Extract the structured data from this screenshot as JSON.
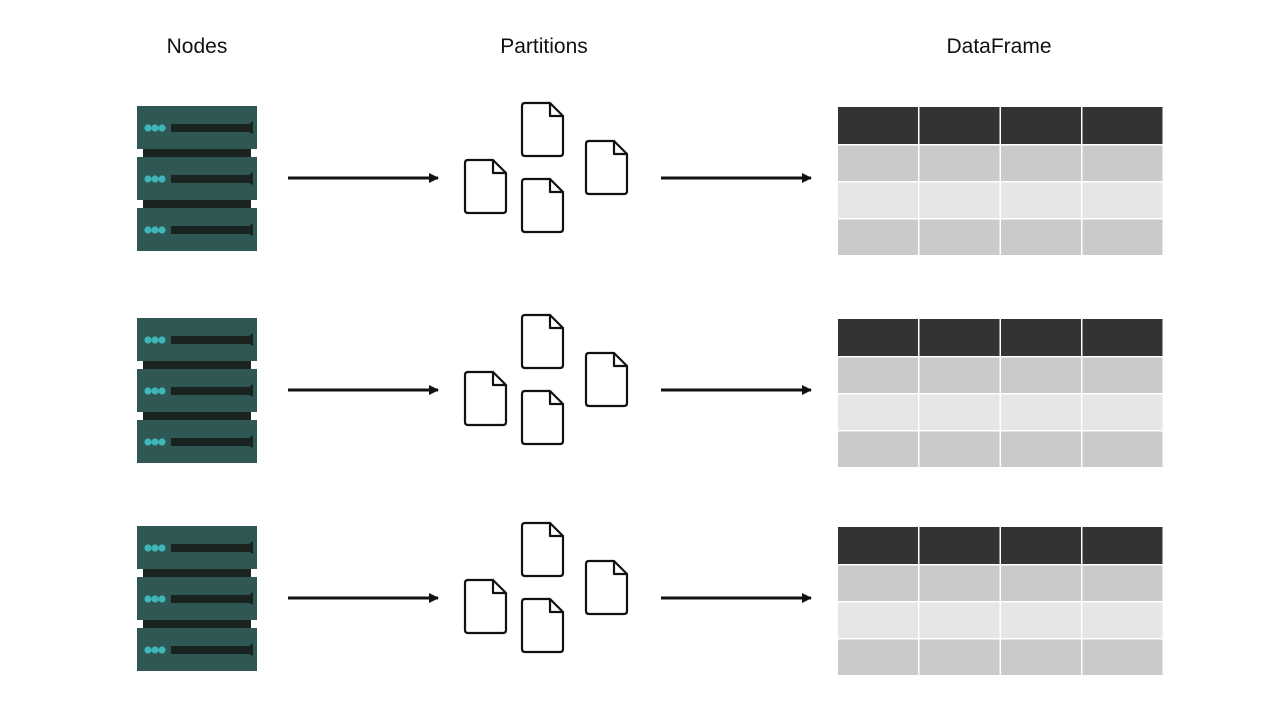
{
  "headers": {
    "nodes": "Nodes",
    "partitions": "Partitions",
    "dataframe": "DataFrame"
  },
  "colors": {
    "server_body": "#2f5753",
    "server_slot": "#1b2321",
    "server_gap": "#1b2321",
    "server_light": "#3fb6b8",
    "arrow": "#111111",
    "file_stroke": "#111111",
    "table_header": "#333333",
    "table_row_dark": "#cacaca",
    "table_row_light": "#e6e6e6"
  },
  "rows": [
    {
      "id": "row-1",
      "server_units": 3,
      "partition_files": 4,
      "table_columns": 4,
      "table_body_rows": 3
    },
    {
      "id": "row-2",
      "server_units": 3,
      "partition_files": 4,
      "table_columns": 4,
      "table_body_rows": 3
    },
    {
      "id": "row-3",
      "server_units": 3,
      "partition_files": 4,
      "table_columns": 4,
      "table_body_rows": 3
    }
  ]
}
